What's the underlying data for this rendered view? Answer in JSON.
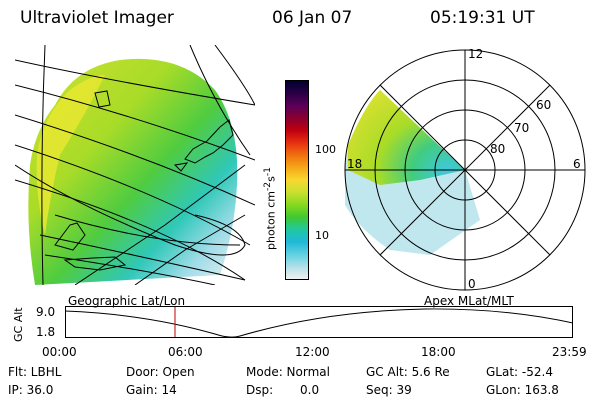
{
  "header": {
    "title": "Ultraviolet Imager",
    "date": "06 Jan 07",
    "time": "05:19:31 UT"
  },
  "geo_panel": {
    "label": "Geographic Lat/Lon"
  },
  "polar_panel": {
    "label": "Apex MLat/MLT",
    "mlt_labels": {
      "top": "12",
      "right": "6",
      "bottom": "0",
      "left": "18"
    },
    "lat_labels": [
      "60",
      "70",
      "80"
    ]
  },
  "colorbar": {
    "unit_label": "photon cm^-2 s^-1",
    "ticks": [
      "100",
      "10"
    ],
    "colors": [
      "#000033",
      "#2a0044",
      "#5a0058",
      "#8a0030",
      "#c00010",
      "#e83010",
      "#f07010",
      "#f5a818",
      "#f8d830",
      "#c8e030",
      "#88d820",
      "#40c830",
      "#20c8a0",
      "#20b8d8",
      "#60d0e0",
      "#b0e0e8",
      "#f0f0f0"
    ]
  },
  "altitude_plot": {
    "y_label": "GC Alt",
    "y_ticks": [
      "9.0",
      "1.8"
    ],
    "x_ticks": [
      "00:00",
      "06:00",
      "12:00",
      "18:00",
      "23:59"
    ],
    "marker_time": "05:19"
  },
  "info": {
    "flt": "Flt: LBHL",
    "door": "Door: Open",
    "mode": "Mode: Normal",
    "gc_alt": "GC Alt: 5.6 Re",
    "glat": "GLat: -52.4",
    "ip": "IP: 36.0",
    "gain": "Gain: 14",
    "dsp_label": "Dsp:",
    "dsp_value": "0.0",
    "seq": "Seq: 39",
    "glon": "GLon: 163.8"
  }
}
